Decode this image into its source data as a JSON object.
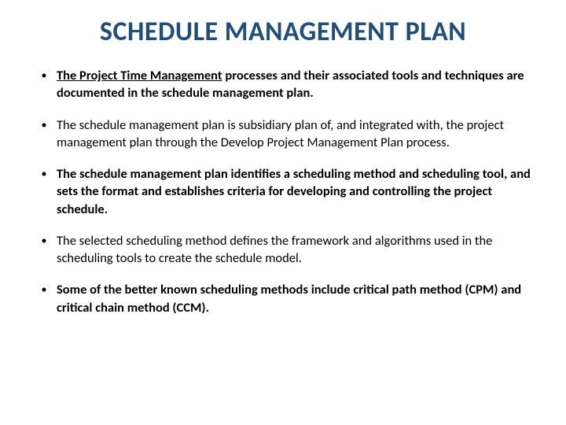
{
  "title": "SCHEDULE MANAGEMENT PLAN",
  "title_color": "#1f4e79",
  "title_fontsize": 34,
  "body_fontsize": 16.5,
  "background_color": "#ffffff",
  "text_color": "#000000",
  "bullet_marker": "•",
  "bullets": [
    {
      "text": "The Project Time Management processes and their associated tools and techniques are documented in the schedule management plan.",
      "bold": true,
      "underline_prefix": "The Project Time Management"
    },
    {
      "text": "The schedule management plan is subsidiary plan of, and integrated with, the project management plan through the Develop Project Management Plan process.",
      "bold": false
    },
    {
      "text": "The schedule management plan identifies a scheduling method and scheduling tool, and sets the format and establishes criteria for developing and controlling the project schedule.",
      "bold": true
    },
    {
      "text": "The selected scheduling method defines the framework and algorithms used in the scheduling tools to create the schedule model.",
      "bold": false
    },
    {
      "text": "Some of the better known scheduling methods include critical path method (CPM) and critical chain method (CCM).",
      "bold": true
    }
  ]
}
